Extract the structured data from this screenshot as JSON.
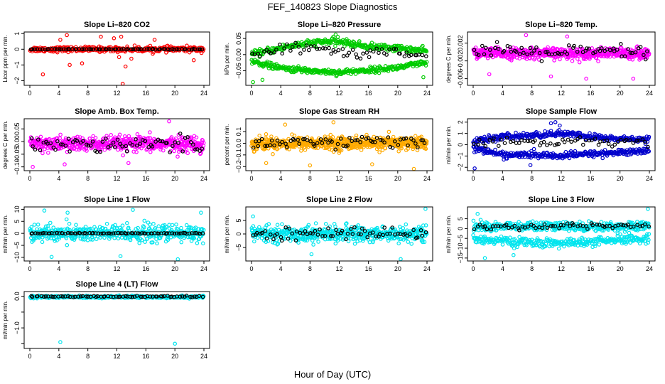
{
  "figure": {
    "title": "FEF_140823  Slope Diagnostics",
    "xlabel": "Hour of Day (UTC)"
  },
  "chart_data": [
    {
      "type": "scatter",
      "title": "Slope Li–820 CO2",
      "ylabel": "Licor ppm per min.",
      "xlim": [
        0,
        24
      ],
      "x_ticks": [
        "0",
        "4",
        "8",
        "12",
        "16",
        "20",
        "24"
      ],
      "ylim": [
        -2.3,
        1.1
      ],
      "y_ticks": [
        1,
        0,
        -1,
        -2
      ],
      "y_tick_labels": [
        "1",
        "0",
        "−1",
        "−2"
      ],
      "series": [
        {
          "color": "#ff0000",
          "center": [
            [
              0,
              0.0
            ],
            [
              24,
              0.0
            ]
          ],
          "spread": 0.15,
          "count": 330,
          "outliers": [
            [
              1.8,
              -1.6
            ],
            [
              4.2,
              0.6
            ],
            [
              5.1,
              0.9
            ],
            [
              5.5,
              -1.0
            ],
            [
              7.2,
              -0.9
            ],
            [
              9.8,
              0.8
            ],
            [
              11.6,
              0.7
            ],
            [
              12.3,
              -0.5
            ],
            [
              12.6,
              0.8
            ],
            [
              13.2,
              -1.1
            ],
            [
              14.0,
              -0.6
            ],
            [
              17.2,
              0.6
            ],
            [
              22.6,
              -0.7
            ],
            [
              12.8,
              -2.2
            ]
          ]
        },
        {
          "color": "#000000",
          "center": [
            [
              0,
              0.0
            ],
            [
              24,
              0.0
            ]
          ],
          "spread": 0.02,
          "count": 75,
          "outliers": []
        }
      ]
    },
    {
      "type": "scatter",
      "title": "Slope Li–820 Pressure",
      "ylabel": "kPa per min.",
      "xlim": [
        0,
        24
      ],
      "x_ticks": [
        "0",
        "4",
        "8",
        "12",
        "16",
        "20",
        "24"
      ],
      "ylim": [
        -0.095,
        0.07
      ],
      "y_ticks": [
        0.05,
        0,
        -0.05
      ],
      "y_tick_labels": [
        "0.05",
        "0.00",
        "−0.05"
      ],
      "series": [
        {
          "color": "#00cc00",
          "center": [
            [
              0,
              0.0
            ],
            [
              2,
              0.01
            ],
            [
              6,
              0.03
            ],
            [
              10,
              0.04
            ],
            [
              12,
              0.04
            ],
            [
              16,
              0.025
            ],
            [
              20,
              0.02
            ],
            [
              24,
              0.01
            ]
          ],
          "spread": 0.009,
          "count": 320,
          "outliers": [
            [
              11.5,
              0.062
            ],
            [
              11.8,
              0.055
            ],
            [
              7.5,
              -0.045
            ]
          ]
        },
        {
          "color": "#00cc00",
          "center": [
            [
              0,
              -0.02
            ],
            [
              4,
              -0.042
            ],
            [
              8,
              -0.05
            ],
            [
              12,
              -0.055
            ],
            [
              16,
              -0.048
            ],
            [
              20,
              -0.04
            ],
            [
              24,
              -0.025
            ]
          ],
          "spread": 0.008,
          "count": 320,
          "outliers": [
            [
              0.2,
              -0.085
            ],
            [
              1.5,
              -0.078
            ],
            [
              23.5,
              -0.07
            ]
          ]
        },
        {
          "color": "#000000",
          "center": [
            [
              0,
              -0.01
            ],
            [
              4,
              0.015
            ],
            [
              10,
              0.02
            ],
            [
              14,
              0.0
            ],
            [
              18,
              0.01
            ],
            [
              24,
              0.0
            ]
          ],
          "spread": 0.016,
          "count": 65,
          "outliers": []
        }
      ]
    },
    {
      "type": "scatter",
      "title": "Slope Li–820 Temp.",
      "ylabel": "degrees C per min.",
      "xlim": [
        0,
        24
      ],
      "x_ticks": [
        "0",
        "4",
        "8",
        "12",
        "16",
        "20",
        "24"
      ],
      "ylim": [
        -0.0075,
        0.0045
      ],
      "y_ticks": [
        0.002,
        -0.002,
        -0.006
      ],
      "y_tick_labels": [
        "0.002",
        "−0.002",
        "−0.006"
      ],
      "series": [
        {
          "color": "#ff00ff",
          "center": [
            [
              0,
              -0.0003
            ],
            [
              24,
              -0.0003
            ]
          ],
          "spread": 0.0011,
          "count": 560,
          "outliers": [
            [
              7.2,
              0.0038
            ],
            [
              12.8,
              0.0035
            ],
            [
              2.2,
              -0.005
            ],
            [
              10.6,
              -0.0055
            ],
            [
              15.4,
              -0.006
            ],
            [
              21.8,
              -0.006
            ]
          ]
        },
        {
          "color": "#000000",
          "center": [
            [
              0,
              0.0
            ],
            [
              24,
              0.0
            ]
          ],
          "spread": 0.0015,
          "count": 70,
          "outliers": []
        }
      ]
    },
    {
      "type": "scatter",
      "title": "Slope Amb. Box Temp.",
      "ylabel": "degrees C per min.",
      "xlim": [
        0,
        24
      ],
      "x_ticks": [
        "0",
        "4",
        "8",
        "12",
        "16",
        "20",
        "24"
      ],
      "ylim": [
        -0.115,
        0.09
      ],
      "y_ticks": [
        0.05,
        0,
        -0.05,
        -0.1
      ],
      "y_tick_labels": [
        "0.05",
        "0.00",
        "−0.05",
        "−0.10"
      ],
      "series": [
        {
          "color": "#ff00ff",
          "center": [
            [
              0,
              -0.01
            ],
            [
              24,
              -0.01
            ]
          ],
          "spread": 0.027,
          "count": 520,
          "outliers": [
            [
              0.4,
              -0.1
            ],
            [
              4.8,
              -0.09
            ],
            [
              19.2,
              0.08
            ],
            [
              13.6,
              -0.085
            ]
          ]
        },
        {
          "color": "#000000",
          "center": [
            [
              0,
              -0.01
            ],
            [
              24,
              -0.01
            ]
          ],
          "spread": 0.03,
          "count": 70,
          "outliers": []
        }
      ]
    },
    {
      "type": "scatter",
      "title": "Slope Gas Stream RH",
      "ylabel": "percent per min.",
      "xlim": [
        0,
        24
      ],
      "x_ticks": [
        "0",
        "4",
        "8",
        "12",
        "16",
        "20",
        "24"
      ],
      "ylim": [
        -0.235,
        0.21
      ],
      "y_ticks": [
        0.1,
        0,
        -0.1,
        -0.2
      ],
      "y_tick_labels": [
        "0.1",
        "0.0",
        "−0.1",
        "−0.2"
      ],
      "series": [
        {
          "color": "#ffaa00",
          "center": [
            [
              0,
              0.0
            ],
            [
              24,
              0.0
            ]
          ],
          "spread": 0.05,
          "count": 620,
          "outliers": [
            [
              2.0,
              -0.17
            ],
            [
              4.6,
              0.16
            ],
            [
              8.0,
              -0.19
            ],
            [
              11.2,
              0.18
            ],
            [
              16.5,
              -0.18
            ],
            [
              22.2,
              -0.22
            ]
          ]
        },
        {
          "color": "#000000",
          "center": [
            [
              0,
              0.0
            ],
            [
              24,
              0.02
            ]
          ],
          "spread": 0.05,
          "count": 70,
          "outliers": []
        }
      ]
    },
    {
      "type": "scatter",
      "title": "Slope Sample Flow",
      "ylabel": "ml/min per min.",
      "xlim": [
        0,
        24
      ],
      "x_ticks": [
        "0",
        "4",
        "8",
        "12",
        "16",
        "20",
        "24"
      ],
      "ylim": [
        -2.3,
        2.3
      ],
      "y_ticks": [
        2,
        1,
        0,
        -1,
        -2
      ],
      "y_tick_labels": [
        "2",
        "1",
        "0",
        "−1",
        "−2"
      ],
      "series": [
        {
          "color": "#0000cc",
          "center": [
            [
              0,
              0.3
            ],
            [
              4,
              0.7
            ],
            [
              8,
              0.8
            ],
            [
              12,
              1.0
            ],
            [
              16,
              0.7
            ],
            [
              20,
              0.5
            ],
            [
              24,
              0.5
            ]
          ],
          "spread": 0.25,
          "count": 320,
          "outliers": [
            [
              10.6,
              1.9
            ],
            [
              11.2,
              2.0
            ],
            [
              11.8,
              1.7
            ]
          ]
        },
        {
          "color": "#0000cc",
          "center": [
            [
              0,
              -0.3
            ],
            [
              4,
              -0.9
            ],
            [
              8,
              -0.9
            ],
            [
              12,
              -1.0
            ],
            [
              16,
              -0.8
            ],
            [
              20,
              -0.7
            ],
            [
              24,
              -0.5
            ]
          ],
          "spread": 0.25,
          "count": 320,
          "outliers": [
            [
              0.2,
              -2.1
            ],
            [
              7.8,
              -1.8
            ]
          ]
        },
        {
          "color": "#000000",
          "center": [
            [
              0,
              0.2
            ],
            [
              8,
              0.3
            ],
            [
              12,
              0.2
            ],
            [
              16,
              0.3
            ],
            [
              24,
              0.3
            ]
          ],
          "spread": 0.35,
          "count": 60,
          "outliers": []
        }
      ]
    },
    {
      "type": "scatter",
      "title": "Slope Line 1 Flow",
      "ylabel": "ml/min per min.",
      "xlim": [
        0,
        24
      ],
      "x_ticks": [
        "0",
        "4",
        "8",
        "12",
        "16",
        "20",
        "24"
      ],
      "ylim": [
        -11.5,
        11
      ],
      "y_ticks": [
        10,
        5,
        0,
        -5,
        -10
      ],
      "y_tick_labels": [
        "10",
        "5",
        "0",
        "−5",
        "−10"
      ],
      "series": [
        {
          "color": "#00e5ee",
          "center": [
            [
              0,
              0.0
            ],
            [
              24,
              0.0
            ]
          ],
          "spread": 3.2,
          "count": 470,
          "outliers": [
            [
              2.0,
              9.5
            ],
            [
              5.2,
              8.6
            ],
            [
              14.2,
              9.8
            ],
            [
              23.6,
              8.6
            ],
            [
              3.0,
              -9.8
            ],
            [
              12.5,
              -9.5
            ],
            [
              20.4,
              -10.8
            ]
          ]
        },
        {
          "color": "#000000",
          "center": [
            [
              0,
              0.0
            ],
            [
              24,
              0.0
            ]
          ],
          "spread": 0.15,
          "count": 80,
          "outliers": []
        }
      ]
    },
    {
      "type": "scatter",
      "title": "Slope Line 2 Flow",
      "ylabel": "ml/min per min.",
      "xlim": [
        0,
        24
      ],
      "x_ticks": [
        "0",
        "4",
        "8",
        "12",
        "16",
        "20",
        "24"
      ],
      "ylim": [
        -10,
        10
      ],
      "y_ticks": [
        5,
        0,
        -5
      ],
      "y_tick_labels": [
        "5",
        "0",
        "−5"
      ],
      "series": [
        {
          "color": "#00e5ee",
          "center": [
            [
              0,
              0.0
            ],
            [
              24,
              0.0
            ]
          ],
          "spread": 2.6,
          "count": 520,
          "outliers": [
            [
              0.2,
              6.5
            ],
            [
              23.8,
              9.3
            ],
            [
              20.4,
              -9.3
            ],
            [
              8.2,
              -7.5
            ]
          ]
        },
        {
          "color": "#000000",
          "center": [
            [
              0,
              0.0
            ],
            [
              24,
              0.5
            ]
          ],
          "spread": 2.0,
          "count": 70,
          "outliers": []
        }
      ]
    },
    {
      "type": "scatter",
      "title": "Slope Line 3 Flow",
      "ylabel": "ml/min per min.",
      "xlim": [
        0,
        24
      ],
      "x_ticks": [
        "0",
        "4",
        "8",
        "12",
        "16",
        "20",
        "24"
      ],
      "ylim": [
        -16.5,
        11
      ],
      "y_ticks": [
        5,
        0,
        -5,
        -10,
        -15
      ],
      "y_tick_labels": [
        "5",
        "0",
        "−5",
        "−10",
        "−15"
      ],
      "series": [
        {
          "color": "#00e5ee",
          "center": [
            [
              0,
              1.0
            ],
            [
              24,
              1.0
            ]
          ],
          "spread": 2.2,
          "count": 380,
          "outliers": [
            [
              23.8,
              10.0
            ],
            [
              0.6,
              7.5
            ]
          ]
        },
        {
          "color": "#00e5ee",
          "center": [
            [
              0,
              -5.0
            ],
            [
              6,
              -7.0
            ],
            [
              12,
              -7.5
            ],
            [
              18,
              -6.5
            ],
            [
              24,
              -5.0
            ]
          ],
          "spread": 2.0,
          "count": 330,
          "outliers": [
            [
              1.6,
              -15.0
            ],
            [
              5.5,
              -13.5
            ]
          ]
        },
        {
          "color": "#000000",
          "center": [
            [
              0,
              1.0
            ],
            [
              24,
              1.5
            ]
          ],
          "spread": 1.4,
          "count": 65,
          "outliers": []
        }
      ]
    },
    {
      "type": "scatter",
      "title": "Slope Line 4 (LT) Flow",
      "ylabel": "ml/min per min.",
      "xlim": [
        0,
        24
      ],
      "x_ticks": [
        "0",
        "4",
        "8",
        "12",
        "16",
        "20",
        "24"
      ],
      "ylim": [
        -1.65,
        0.15
      ],
      "y_ticks": [
        0.0,
        -0.5,
        -1.0,
        -1.5
      ],
      "y_tick_labels": [
        "0.0",
        "",
        "−1.0",
        ""
      ],
      "series": [
        {
          "color": "#00e5ee",
          "center": [
            [
              0,
              -0.02
            ],
            [
              24,
              -0.02
            ]
          ],
          "spread": 0.035,
          "count": 400,
          "outliers": [
            [
              4.2,
              -1.45
            ],
            [
              20.0,
              -1.5
            ]
          ]
        },
        {
          "color": "#000000",
          "center": [
            [
              0,
              -0.01
            ],
            [
              24,
              -0.01
            ]
          ],
          "spread": 0.02,
          "count": 70,
          "outliers": []
        }
      ]
    }
  ]
}
